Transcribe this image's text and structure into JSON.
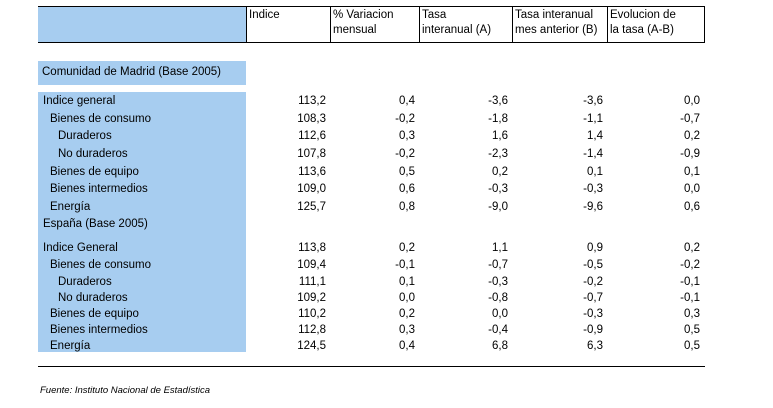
{
  "headers": [
    "Indice",
    "% Variacion mensual",
    "Tasa interanual (A)",
    "Tasa interanual mes anterior (B)",
    "Evolucion de la tasa (A-B)"
  ],
  "header_lines": [
    [
      "Indice",
      ""
    ],
    [
      "% Variacion",
      "mensual"
    ],
    [
      "Tasa",
      "interanual (A)"
    ],
    [
      "Tasa interanual",
      "mes anterior (B)"
    ],
    [
      "Evolucion de",
      "la tasa (A-B)"
    ]
  ],
  "section1": {
    "title": "Comunidad de Madrid (Base 2005)",
    "rows": [
      {
        "label": "Indice general",
        "indent": 0,
        "values": [
          "113,2",
          "0,4",
          "-3,6",
          "-3,6",
          "0,0"
        ]
      },
      {
        "label": "Bienes de consumo",
        "indent": 1,
        "values": [
          "108,3",
          "-0,2",
          "-1,8",
          "-1,1",
          "-0,7"
        ]
      },
      {
        "label": "Duraderos",
        "indent": 2,
        "values": [
          "112,6",
          "0,3",
          "1,6",
          "1,4",
          "0,2"
        ]
      },
      {
        "label": "No duraderos",
        "indent": 2,
        "values": [
          "107,8",
          "-0,2",
          "-2,3",
          "-1,4",
          "-0,9"
        ]
      },
      {
        "label": "Bienes de equipo",
        "indent": 1,
        "values": [
          "113,6",
          "0,5",
          "0,2",
          "0,1",
          "0,1"
        ]
      },
      {
        "label": "Bienes intermedios",
        "indent": 1,
        "values": [
          "109,0",
          "0,6",
          "-0,3",
          "-0,3",
          "0,0"
        ]
      },
      {
        "label": "Energía",
        "indent": 1,
        "values": [
          "125,7",
          "0,8",
          "-9,0",
          "-9,6",
          "0,6"
        ]
      }
    ]
  },
  "section2": {
    "title": "España (Base 2005)",
    "rows": [
      {
        "label": "Indice General",
        "indent": 0,
        "values": [
          "113,8",
          "0,2",
          "1,1",
          "0,9",
          "0,2"
        ]
      },
      {
        "label": "Bienes de consumo",
        "indent": 1,
        "values": [
          "109,4",
          "-0,1",
          "-0,7",
          "-0,5",
          "-0,2"
        ]
      },
      {
        "label": "Duraderos",
        "indent": 2,
        "values": [
          "111,1",
          "0,1",
          "-0,3",
          "-0,2",
          "-0,1"
        ]
      },
      {
        "label": "No duraderos",
        "indent": 2,
        "values": [
          "109,2",
          "0,0",
          "-0,8",
          "-0,7",
          "-0,1"
        ]
      },
      {
        "label": "Bienes de equipo",
        "indent": 1,
        "values": [
          "110,2",
          "0,2",
          "0,0",
          "-0,3",
          "0,3"
        ]
      },
      {
        "label": "Bienes intermedios",
        "indent": 1,
        "values": [
          "112,8",
          "0,3",
          "-0,4",
          "-0,9",
          "0,5"
        ]
      },
      {
        "label": "Energía",
        "indent": 1,
        "values": [
          "124,5",
          "0,4",
          "6,8",
          "6,3",
          "0,5"
        ]
      }
    ]
  },
  "footer": "Fuente: Instituto Nacional de Estadística",
  "colors": {
    "band": "#a7cdf0"
  }
}
